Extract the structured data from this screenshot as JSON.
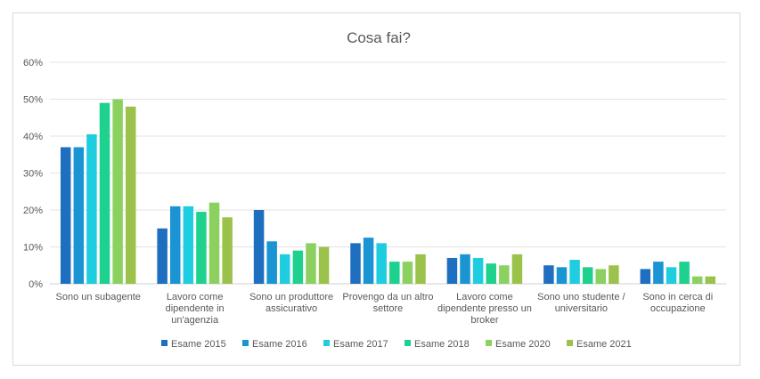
{
  "chart_data": {
    "type": "bar",
    "title": "Cosa fai?",
    "xlabel": "",
    "ylabel": "",
    "ylim": [
      0,
      60
    ],
    "yticks": [
      "0%",
      "10%",
      "20%",
      "30%",
      "40%",
      "50%",
      "60%"
    ],
    "grid": true,
    "legend_position": "bottom",
    "categories": [
      [
        "Sono un subagente"
      ],
      [
        "Lavoro come",
        "dipendente in",
        "un'agenzia"
      ],
      [
        "Sono un produttore",
        "assicurativo"
      ],
      [
        "Provengo da un altro",
        "settore"
      ],
      [
        "Lavoro come",
        "dipendente presso un",
        "broker"
      ],
      [
        "Sono uno studente /",
        "universitario"
      ],
      [
        "Sono in cerca di",
        "occupazione"
      ]
    ],
    "series": [
      {
        "name": "Esame 2015",
        "color": "#1f6fc0",
        "values": [
          37,
          15,
          20,
          11,
          7,
          5,
          4
        ]
      },
      {
        "name": "Esame 2016",
        "color": "#1b94d4",
        "values": [
          37,
          21,
          11.5,
          12.5,
          8,
          4.5,
          6
        ]
      },
      {
        "name": "Esame 2017",
        "color": "#1fcde0",
        "values": [
          40.5,
          21,
          8,
          11,
          7,
          6.5,
          4.5
        ]
      },
      {
        "name": "Esame 2018",
        "color": "#1ed18f",
        "values": [
          49,
          19.5,
          9,
          6,
          5.5,
          4.5,
          6
        ]
      },
      {
        "name": "Esame 2020",
        "color": "#8cd160",
        "values": [
          50,
          22,
          11,
          6,
          5,
          4,
          2
        ]
      },
      {
        "name": "Esame 2021",
        "color": "#9bc24a",
        "values": [
          48,
          18,
          10,
          8,
          8,
          5,
          2
        ]
      }
    ]
  }
}
